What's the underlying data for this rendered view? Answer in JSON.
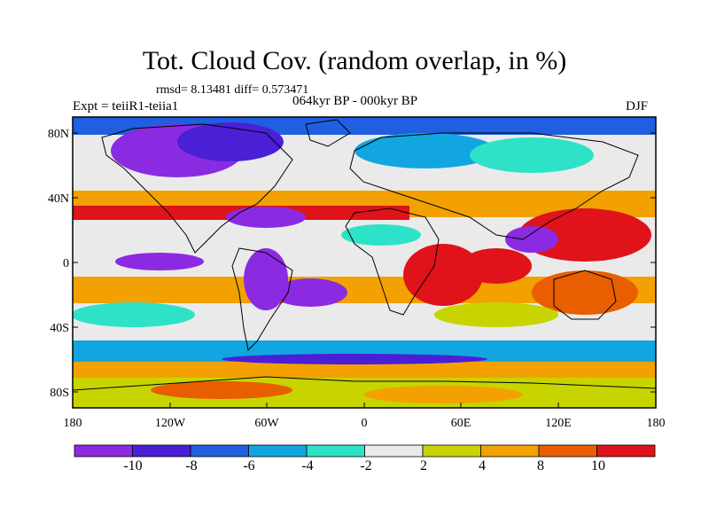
{
  "header": {
    "title": "Tot. Cloud Cov. (random overlap, in %)",
    "stats": "rmsd= 8.13481 diff= 0.573471",
    "experiment": "Expt = teiiR1-teiia1",
    "period": "064kyr BP - 000kyr BP",
    "season": "DJF"
  },
  "axes": {
    "lat_ticks": [
      "80N",
      "40N",
      "0",
      "40S",
      "80S"
    ],
    "lon_ticks": [
      "180",
      "120W",
      "60W",
      "0",
      "60E",
      "120E",
      "180"
    ]
  },
  "colorbar": {
    "labels": [
      "-10",
      "-8",
      "-6",
      "-4",
      "-2",
      "2",
      "4",
      "8",
      "10"
    ],
    "colors": [
      "#8a2be2",
      "#4b1fd6",
      "#1f5fe0",
      "#12a6e0",
      "#2ee2c8",
      "#eaeaea",
      "#c8d400",
      "#f2a100",
      "#e85e00",
      "#e0121a"
    ]
  },
  "map_colors": {
    "strong_neg": "#8a2be2",
    "neg": "#1f5fe0",
    "weak_neg": "#2ee2c8",
    "neutral": "#eaeaea",
    "weak_pos": "#c8d400",
    "pos": "#f2a100",
    "strong_pos": "#e0121a"
  }
}
